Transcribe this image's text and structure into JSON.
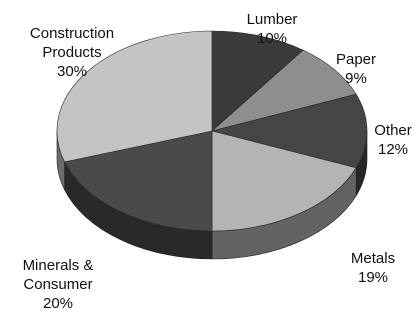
{
  "chart_data": {
    "type": "pie",
    "title": "",
    "slices": [
      {
        "label_lines": [
          "Lumber"
        ],
        "pct_text": "10%",
        "value": 10,
        "color": "#3a3a3a"
      },
      {
        "label_lines": [
          "Paper"
        ],
        "pct_text": "9%",
        "value": 9,
        "color": "#8e8e8e"
      },
      {
        "label_lines": [
          "Other"
        ],
        "pct_text": "12%",
        "value": 12,
        "color": "#454545"
      },
      {
        "label_lines": [
          "Metals"
        ],
        "pct_text": "19%",
        "value": 19,
        "color": "#b4b4b4"
      },
      {
        "label_lines": [
          "Minerals &",
          "Consumer"
        ],
        "pct_text": "20%",
        "value": 20,
        "color": "#4a4a4a"
      },
      {
        "label_lines": [
          "Construction",
          "Products"
        ],
        "pct_text": "30%",
        "value": 30,
        "color": "#c4c4c4"
      }
    ],
    "start_position": "top",
    "direction": "clockwise",
    "style": "3d",
    "legend": "none"
  }
}
